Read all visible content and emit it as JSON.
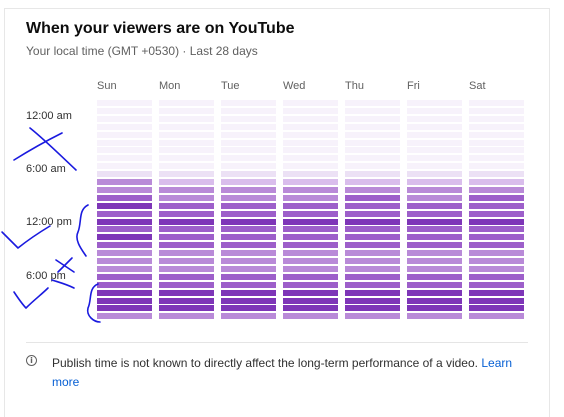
{
  "card": {
    "title": "When your viewers are on YouTube",
    "subtitle": "Your local time (GMT +0530) · Last 28 days"
  },
  "days": [
    "Sun",
    "Mon",
    "Tue",
    "Wed",
    "Thu",
    "Fri",
    "Sat"
  ],
  "time_labels": [
    "12:00 am",
    "6:00 am",
    "12:00 pm",
    "6:00 pm"
  ],
  "chart_data": {
    "type": "heatmap",
    "x": [
      "Sun",
      "Mon",
      "Tue",
      "Wed",
      "Thu",
      "Fri",
      "Sat"
    ],
    "y_ticks": [
      "12:00 am",
      "6:00 am",
      "12:00 pm",
      "6:00 pm"
    ],
    "scale_colors": [
      "#f7f2fb",
      "#ece1f5",
      "#d9bdec",
      "#b98ad8",
      "#9d5fca",
      "#7e35b8"
    ],
    "levels": [
      [
        0,
        0,
        0,
        0,
        0,
        0,
        0
      ],
      [
        0,
        0,
        0,
        0,
        0,
        0,
        0
      ],
      [
        0,
        0,
        0,
        0,
        0,
        0,
        0
      ],
      [
        0,
        0,
        0,
        0,
        0,
        0,
        0
      ],
      [
        0,
        0,
        0,
        0,
        0,
        0,
        0
      ],
      [
        0,
        0,
        0,
        0,
        0,
        0,
        0
      ],
      [
        0,
        0,
        0,
        0,
        0,
        0,
        0
      ],
      [
        0,
        0,
        0,
        0,
        0,
        0,
        0
      ],
      [
        0,
        0,
        0,
        0,
        0,
        0,
        0
      ],
      [
        1,
        1,
        1,
        1,
        1,
        1,
        1
      ],
      [
        3,
        2,
        2,
        2,
        2,
        2,
        2
      ],
      [
        3,
        3,
        3,
        3,
        3,
        3,
        3
      ],
      [
        4,
        3,
        3,
        3,
        4,
        3,
        4
      ],
      [
        5,
        4,
        4,
        4,
        4,
        4,
        4
      ],
      [
        4,
        4,
        4,
        4,
        4,
        4,
        4
      ],
      [
        5,
        5,
        5,
        5,
        5,
        5,
        5
      ],
      [
        4,
        4,
        4,
        4,
        4,
        4,
        4
      ],
      [
        5,
        4,
        4,
        4,
        4,
        4,
        4
      ],
      [
        4,
        4,
        4,
        4,
        4,
        4,
        4
      ],
      [
        3,
        3,
        3,
        3,
        3,
        3,
        3
      ],
      [
        3,
        3,
        3,
        3,
        3,
        3,
        3
      ],
      [
        3,
        3,
        3,
        3,
        3,
        3,
        3
      ],
      [
        4,
        4,
        4,
        4,
        4,
        4,
        4
      ],
      [
        4,
        4,
        4,
        4,
        4,
        4,
        4
      ],
      [
        5,
        5,
        5,
        5,
        5,
        5,
        5
      ],
      [
        5,
        5,
        5,
        5,
        5,
        5,
        5
      ],
      [
        5,
        5,
        5,
        5,
        5,
        5,
        5
      ],
      [
        3,
        3,
        3,
        3,
        3,
        3,
        3
      ]
    ]
  },
  "footer": {
    "note": "Publish time is not known to directly affect the long-term performance of a video.",
    "learn_more": "Learn more"
  }
}
